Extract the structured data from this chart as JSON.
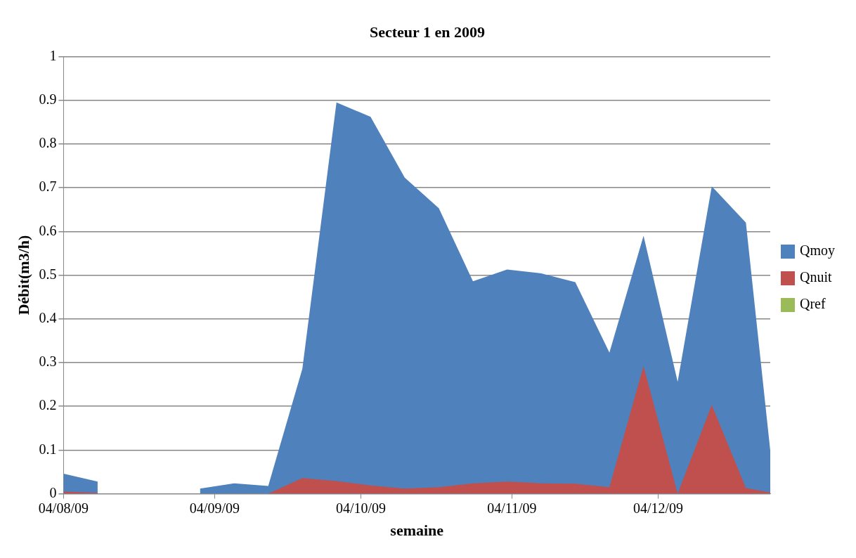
{
  "chart_data": {
    "type": "area",
    "title": "Secteur 1 en 2009",
    "xlabel": "semaine",
    "ylabel": "Débit(m3/h)",
    "x": [
      "2009-08-04",
      "2009-08-11",
      "2009-08-18",
      "2009-08-25",
      "2009-09-01",
      "2009-09-08",
      "2009-09-15",
      "2009-09-22",
      "2009-09-29",
      "2009-10-06",
      "2009-10-13",
      "2009-10-20",
      "2009-10-27",
      "2009-11-03",
      "2009-11-10",
      "2009-11-17",
      "2009-11-24",
      "2009-12-01",
      "2009-12-08",
      "2009-12-15",
      "2009-12-22",
      "2009-12-27"
    ],
    "series": [
      {
        "name": "Qmoy",
        "color": "#4f81bd",
        "values": [
          0.046,
          0.028,
          null,
          null,
          0.012,
          0.024,
          0.018,
          0.286,
          0.895,
          0.862,
          0.723,
          0.653,
          0.486,
          0.513,
          0.504,
          0.484,
          0.323,
          0.59,
          0.256,
          0.703,
          0.62,
          0.099
        ]
      },
      {
        "name": "Qnuit",
        "color": "#c0504d",
        "values": [
          0.005,
          0.002,
          null,
          null,
          0,
          0,
          0,
          0.036,
          0.029,
          0.019,
          0.012,
          0.015,
          0.024,
          0.028,
          0.024,
          0.023,
          0.015,
          0.292,
          0,
          0.203,
          0.013,
          0.003
        ]
      },
      {
        "name": "Qref",
        "color": "#9bbb59",
        "values": [
          null,
          null,
          null,
          null,
          null,
          null,
          null,
          null,
          null,
          null,
          null,
          null,
          null,
          null,
          null,
          null,
          null,
          null,
          null,
          null,
          null,
          null
        ]
      }
    ],
    "xlim": [
      "2009-08-04",
      "2009-12-27"
    ],
    "xticks": [
      {
        "value": "2009-08-04",
        "label": "04/08/09"
      },
      {
        "value": "2009-09-04",
        "label": "04/09/09"
      },
      {
        "value": "2009-10-04",
        "label": "04/10/09"
      },
      {
        "value": "2009-11-04",
        "label": "04/11/09"
      },
      {
        "value": "2009-12-04",
        "label": "04/12/09"
      }
    ],
    "ylim": [
      0,
      1
    ],
    "yticks": [
      0,
      0.1,
      0.2,
      0.3,
      0.4,
      0.5,
      0.6,
      0.7,
      0.8,
      0.9,
      1
    ],
    "grid": "y",
    "legend": "right"
  }
}
